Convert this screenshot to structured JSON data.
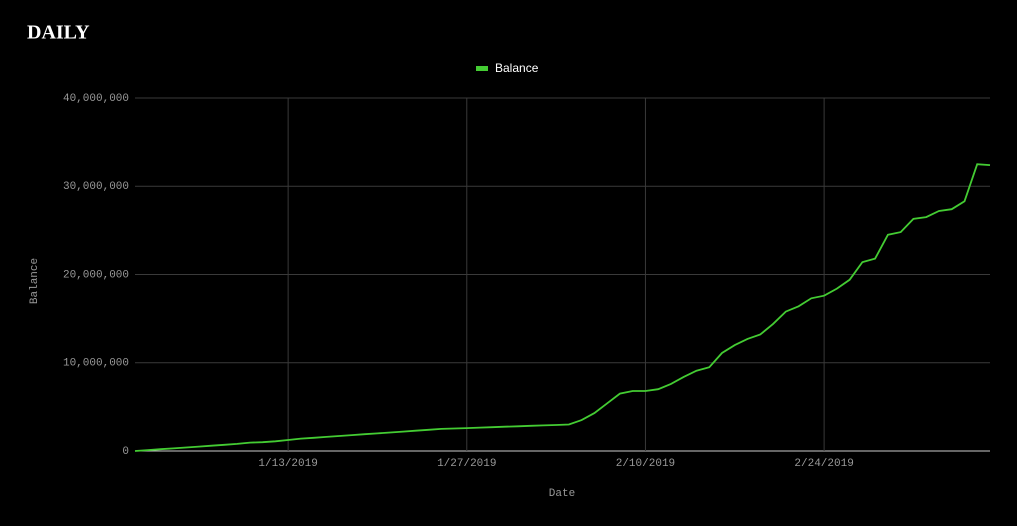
{
  "chart_data": {
    "type": "line",
    "title": "DAILY",
    "x_label": "Date",
    "y_label": "Balance",
    "x": [
      "1/1/2019",
      "1/2/2019",
      "1/3/2019",
      "1/4/2019",
      "1/5/2019",
      "1/6/2019",
      "1/7/2019",
      "1/8/2019",
      "1/9/2019",
      "1/10/2019",
      "1/11/2019",
      "1/12/2019",
      "1/13/2019",
      "1/14/2019",
      "1/15/2019",
      "1/16/2019",
      "1/17/2019",
      "1/18/2019",
      "1/19/2019",
      "1/20/2019",
      "1/21/2019",
      "1/22/2019",
      "1/23/2019",
      "1/24/2019",
      "1/25/2019",
      "1/26/2019",
      "1/27/2019",
      "1/28/2019",
      "1/29/2019",
      "1/30/2019",
      "1/31/2019",
      "2/1/2019",
      "2/2/2019",
      "2/3/2019",
      "2/4/2019",
      "2/5/2019",
      "2/6/2019",
      "2/7/2019",
      "2/8/2019",
      "2/9/2019",
      "2/10/2019",
      "2/11/2019",
      "2/12/2019",
      "2/13/2019",
      "2/14/2019",
      "2/15/2019",
      "2/16/2019",
      "2/17/2019",
      "2/18/2019",
      "2/19/2019",
      "2/20/2019",
      "2/21/2019",
      "2/22/2019",
      "2/23/2019",
      "2/24/2019",
      "2/25/2019",
      "2/26/2019",
      "2/27/2019",
      "2/28/2019",
      "3/1/2019",
      "3/2/2019",
      "3/3/2019",
      "3/4/2019",
      "3/5/2019",
      "3/6/2019",
      "3/7/2019",
      "3/8/2019",
      "3/9/2019"
    ],
    "series": [
      {
        "name": "Balance",
        "color": "#44cc33",
        "values": [
          0,
          100000,
          200000,
          300000,
          400000,
          500000,
          600000,
          700000,
          800000,
          950000,
          1000000,
          1100000,
          1250000,
          1400000,
          1500000,
          1600000,
          1700000,
          1800000,
          1900000,
          2000000,
          2100000,
          2200000,
          2300000,
          2400000,
          2500000,
          2550000,
          2600000,
          2650000,
          2700000,
          2750000,
          2800000,
          2850000,
          2900000,
          2950000,
          3000000,
          3500000,
          4300000,
          5400000,
          6500000,
          6800000,
          6800000,
          7000000,
          7600000,
          8400000,
          9100000,
          9500000,
          11100000,
          12000000,
          12700000,
          13200000,
          14400000,
          15800000,
          16400000,
          17300000,
          17600000,
          18400000,
          19400000,
          21400000,
          21800000,
          24500000,
          24800000,
          26300000,
          26500000,
          27200000,
          27400000,
          28300000,
          32500000,
          32400000
        ]
      }
    ],
    "xlim": [
      "1/1/2019",
      "3/9/2019"
    ],
    "xticks": [
      "1/13/2019",
      "1/27/2019",
      "2/10/2019",
      "2/24/2019"
    ],
    "ylim": [
      0,
      40000000
    ],
    "yticks": [
      0,
      {
        "value": 10000000,
        "label": "10,000,000"
      },
      {
        "value": 20000000,
        "label": "20,000,000"
      },
      {
        "value": 30000000,
        "label": "30,000,000"
      },
      {
        "value": 40000000,
        "label": "40,000,000"
      }
    ],
    "grid": true,
    "legend": "top"
  }
}
